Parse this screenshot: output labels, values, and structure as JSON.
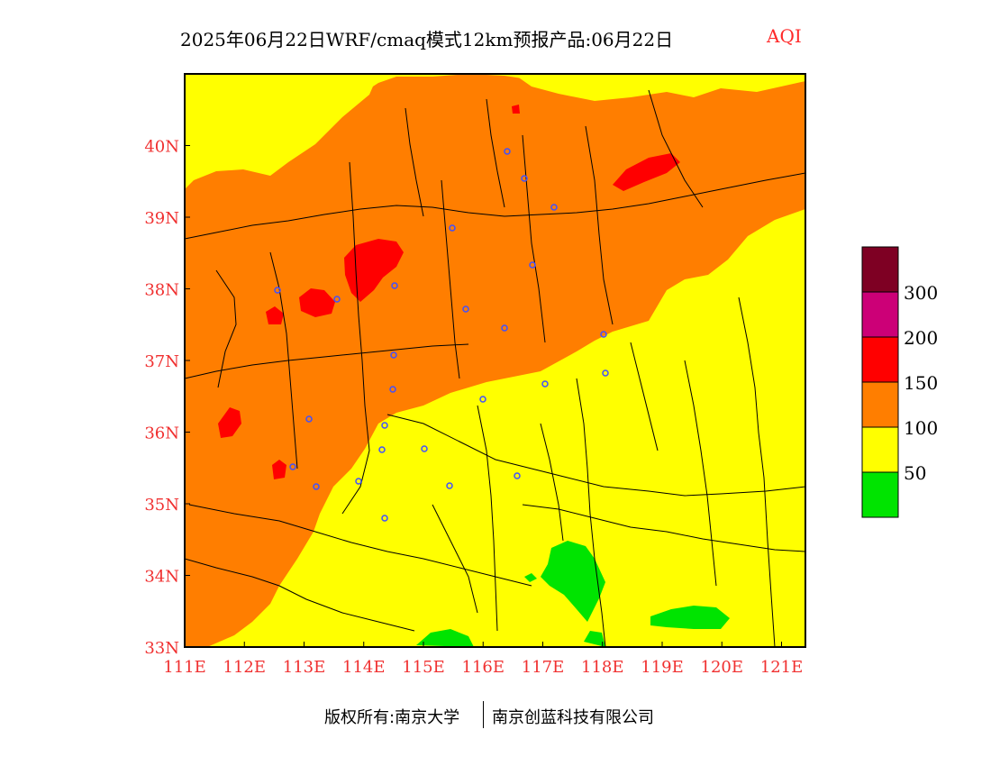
{
  "title": {
    "main": "2025年06月22日WRF/cmaq模式12km预报产品:06月22日",
    "variable": "AQI"
  },
  "map": {
    "lon_ticks": [
      "111E",
      "112E",
      "113E",
      "114E",
      "115E",
      "116E",
      "117E",
      "118E",
      "119E",
      "120E",
      "121E"
    ],
    "lat_ticks": [
      "40N",
      "39N",
      "38N",
      "37N",
      "36N",
      "35N",
      "34N",
      "33N"
    ],
    "lon_range": [
      111,
      121.4
    ],
    "lat_range": [
      33,
      41
    ],
    "colors": {
      "good": "#00e400",
      "moderate": "#ffff00",
      "usg": "#ff7e00",
      "unhealthy": "#ff0000",
      "very_unhealthy": "#cc0077",
      "hazardous": "#7e0023",
      "boundary": "#000000",
      "city_marker": "#4050ff",
      "tick_label": "#f03030"
    },
    "city_markers_count": 26
  },
  "legend": {
    "labels": [
      "300",
      "200",
      "150",
      "100",
      "50"
    ],
    "colors": [
      "#7e0023",
      "#cc0077",
      "#ff0000",
      "#ff7e00",
      "#ffff00",
      "#00e400"
    ]
  },
  "footer": {
    "left": "版权所有:南京大学",
    "right": "南京创蓝科技有限公司"
  }
}
